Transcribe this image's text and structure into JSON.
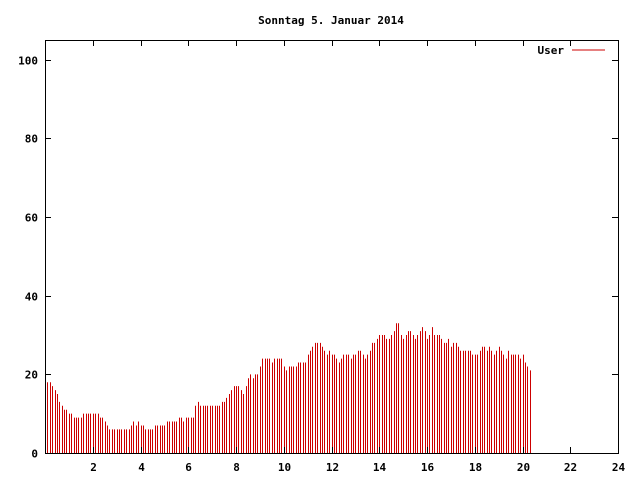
{
  "chart_data": {
    "type": "bar",
    "title": "Sonntag 5. Januar 2014",
    "xlabel": "",
    "ylabel": "",
    "xlim": [
      0,
      24
    ],
    "ylim": [
      0,
      105
    ],
    "x_ticks": [
      2,
      4,
      6,
      8,
      10,
      12,
      14,
      16,
      18,
      20,
      22,
      24
    ],
    "y_ticks": [
      0,
      20,
      40,
      60,
      80,
      100
    ],
    "x_tick_labels": [
      "2",
      "4",
      "6",
      "8",
      "10",
      "12",
      "14",
      "16",
      "18",
      "20",
      "22",
      "24"
    ],
    "y_tick_labels": [
      "0",
      "20",
      "40",
      "60",
      "80",
      "100"
    ],
    "grid": false,
    "legend_position": "top-right",
    "series": [
      {
        "name": "User",
        "color": "#cc0000",
        "interval_hours": 0.1,
        "values": [
          18,
          18,
          18,
          17,
          16,
          15,
          13,
          12,
          11,
          11,
          10,
          10,
          9,
          9,
          9,
          9,
          10,
          10,
          10,
          10,
          10,
          10,
          10,
          9,
          9,
          8,
          7,
          6,
          6,
          6,
          6,
          6,
          6,
          6,
          6,
          6,
          7,
          8,
          7,
          8,
          7,
          7,
          6,
          6,
          6,
          6,
          7,
          7,
          7,
          7,
          7,
          8,
          8,
          8,
          8,
          8,
          9,
          9,
          8,
          9,
          9,
          9,
          9,
          12,
          13,
          12,
          12,
          12,
          12,
          12,
          12,
          12,
          12,
          12,
          13,
          13,
          14,
          15,
          16,
          17,
          17,
          17,
          16,
          15,
          17,
          19,
          20,
          19,
          20,
          20,
          22,
          24,
          24,
          24,
          24,
          23,
          24,
          24,
          24,
          24,
          22,
          21,
          22,
          22,
          22,
          22,
          23,
          23,
          23,
          23,
          25,
          26,
          27,
          28,
          28,
          28,
          27,
          26,
          25,
          26,
          25,
          25,
          24,
          23,
          24,
          25,
          25,
          25,
          24,
          25,
          25,
          26,
          26,
          25,
          24,
          25,
          26,
          28,
          28,
          29,
          30,
          30,
          30,
          29,
          29,
          30,
          31,
          33,
          33,
          30,
          29,
          30,
          31,
          31,
          30,
          29,
          30,
          31,
          32,
          31,
          29,
          30,
          32,
          30,
          30,
          30,
          29,
          28,
          28,
          29,
          27,
          28,
          28,
          27,
          26,
          26,
          26,
          26,
          26,
          25,
          25,
          25,
          26,
          27,
          27,
          26,
          27,
          26,
          25,
          26,
          27,
          26,
          25,
          24,
          26,
          25,
          25,
          25,
          25,
          24,
          25,
          23,
          22,
          21
        ]
      }
    ]
  }
}
